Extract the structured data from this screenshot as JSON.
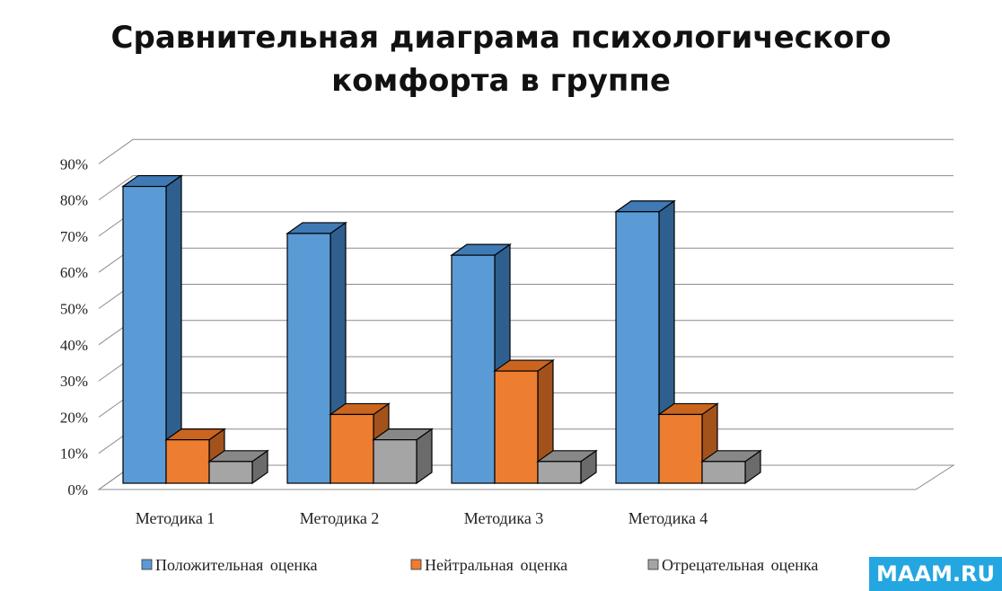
{
  "chart_data": {
    "type": "bar",
    "title_lines": [
      "Сравнительная диаграма психологического",
      "комфорта в группе"
    ],
    "categories": [
      "Методика 1",
      "Методика 2",
      "Методика 3",
      "Методика 4"
    ],
    "series": [
      {
        "name": "Положительная оценка",
        "values": [
          82,
          69,
          63,
          75
        ],
        "color": "#5b9bd5",
        "side": "#2f5f8f",
        "top": "#3f7ab5"
      },
      {
        "name": "Нейтральная оценка",
        "values": [
          12,
          19,
          31,
          19
        ],
        "color": "#ed7d31",
        "side": "#a4521b",
        "top": "#c9651f"
      },
      {
        "name": "Отрецательная оценка",
        "values": [
          6,
          12,
          6,
          6
        ],
        "color": "#a5a5a5",
        "side": "#6b6b6b",
        "top": "#888888"
      }
    ],
    "yticks": [
      "0%",
      "10%",
      "20%",
      "30%",
      "40%",
      "50%",
      "60%",
      "70%",
      "80%",
      "90%"
    ],
    "ylim": [
      0,
      90
    ],
    "legend_position": "bottom",
    "grid": true,
    "style": "3d-clustered-column"
  },
  "watermark": "MAAM.RU"
}
